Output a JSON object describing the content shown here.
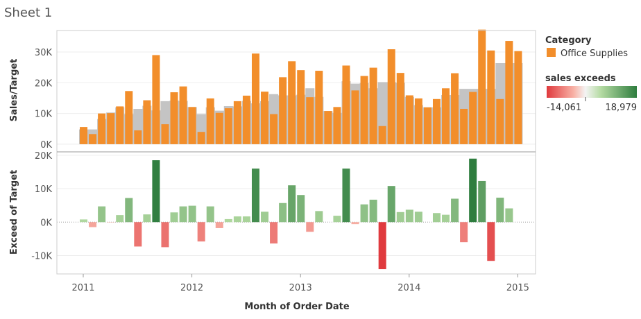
{
  "sheet_title": "Sheet 1",
  "colors": {
    "bar": "#f28e2b",
    "target_area": "#c4c4c4",
    "neg_strong": "#e03a3e",
    "neg_light": "#f8b2a6",
    "pos_light": "#b5dba3",
    "pos_strong": "#2e7d3e",
    "axis": "#cccccc",
    "grid": "#eeeeee"
  },
  "legend": {
    "category_title": "Category",
    "category_item": "Office Supplies",
    "gradient_title": "sales exceeds",
    "gradient_min_label": "-14,061",
    "gradient_max_label": "18,979"
  },
  "chart_data": [
    {
      "type": "bar",
      "title": "",
      "ylabel": "Sales/Target",
      "ylim": [
        -2500,
        37000
      ],
      "yticks": [
        0,
        10000,
        20000,
        30000
      ],
      "ytick_labels": [
        "0K",
        "10K",
        "20K",
        "30K"
      ],
      "x_labels": [
        "2011",
        "2012",
        "2013",
        "2014",
        "2015"
      ],
      "x_start": "2011-01",
      "series": [
        {
          "name": "Office Supplies",
          "type": "bar",
          "values": [
            5600,
            3300,
            10000,
            10100,
            12300,
            17300,
            4500,
            14300,
            29000,
            6500,
            16900,
            18800,
            12100,
            4000,
            14900,
            10200,
            11700,
            14000,
            15800,
            29500,
            17100,
            9800,
            21800,
            27000,
            24100,
            15300,
            23900,
            10800,
            12100,
            25600,
            17500,
            22200,
            24900,
            5900,
            30900,
            23200,
            15900,
            14900,
            12000,
            14700,
            18200,
            23100,
            11500,
            17000,
            37300,
            30500,
            14700,
            33600,
            30300
          ]
        },
        {
          "name": "",
          "type": "area",
          "values": [
            4800,
            4800,
            8200,
            10300,
            12000,
            9800,
            11500,
            12500,
            11000,
            14000,
            14200,
            14100,
            12100,
            9800,
            12000,
            10900,
            12400,
            12300,
            14100,
            13300,
            14000,
            16300,
            15900,
            15900,
            16100,
            18200,
            15400,
            10800,
            10200,
            20500,
            19700,
            19900,
            18200,
            20200,
            20200,
            20000,
            15400,
            12700,
            12000,
            12000,
            16000,
            16000,
            18000,
            18000,
            18000,
            18000,
            26400,
            26400,
            26400
          ]
        }
      ]
    },
    {
      "type": "bar",
      "title": "",
      "ylabel": "Exceed of Target",
      "xlabel": "Month of Order Date",
      "ylim": [
        -15500,
        21000
      ],
      "yticks": [
        -10000,
        0,
        10000,
        20000
      ],
      "ytick_labels": [
        "-10K",
        "0K",
        "10K",
        "20K"
      ],
      "x_labels": [
        "2011",
        "2012",
        "2013",
        "2014",
        "2015"
      ],
      "color_range": [
        -14061,
        18979
      ],
      "values": [
        800,
        -1500,
        4700,
        -100,
        2100,
        7200,
        -7300,
        2300,
        18500,
        -7500,
        2900,
        4700,
        4900,
        -5800,
        4700,
        -1800,
        900,
        1700,
        1700,
        16000,
        3100,
        -6400,
        5700,
        11000,
        8100,
        -2900,
        3300,
        0,
        1900,
        16000,
        -600,
        5300,
        6700,
        -14061,
        10800,
        3000,
        3700,
        3100,
        0,
        2700,
        2200,
        7000,
        -6000,
        18979,
        12300,
        -11600,
        7300,
        4100,
        0
      ]
    }
  ]
}
